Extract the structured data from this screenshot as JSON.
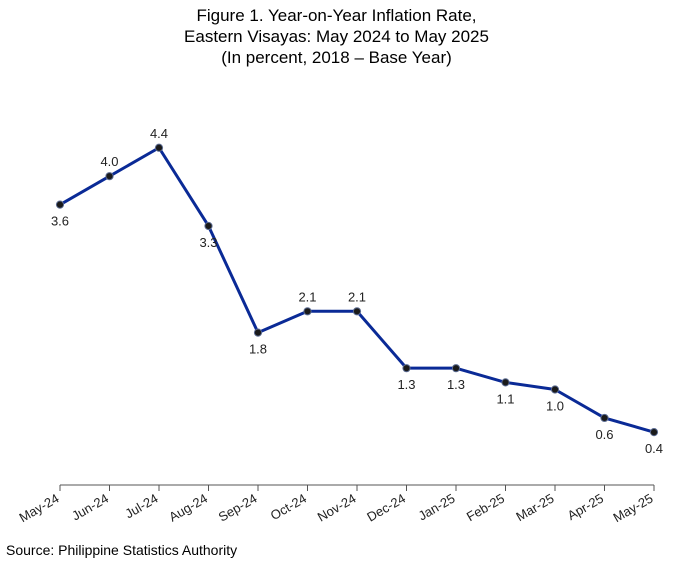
{
  "chart_data": {
    "type": "line",
    "title": [
      "Figure 1. Year-on-Year Inflation Rate,",
      "Eastern Visayas: May 2024 to May 2025",
      "(In percent, 2018 – Base Year)"
    ],
    "xlabel": "",
    "ylabel": "",
    "categories": [
      "May-24",
      "Jun-24",
      "Jul-24",
      "Aug-24",
      "Sep-24",
      "Oct-24",
      "Nov-24",
      "Dec-24",
      "Jan-25",
      "Feb-25",
      "Mar-25",
      "Apr-25",
      "May-25"
    ],
    "series": [
      {
        "values": [
          3.6,
          4.0,
          4.4,
          3.3,
          1.8,
          2.1,
          2.1,
          1.3,
          1.3,
          1.1,
          1.0,
          0.6,
          0.4
        ],
        "labels": [
          "3.6",
          "4.0",
          "4.4",
          "3.3",
          "1.8",
          "2.1",
          "2.1",
          "1.3",
          "1.3",
          "1.1",
          "1.0",
          "0.6",
          "0.4"
        ],
        "label_position": [
          "below",
          "above",
          "above",
          "below",
          "below",
          "above",
          "above",
          "below",
          "below",
          "below",
          "below",
          "below",
          "below"
        ],
        "color": "#0a2a96"
      }
    ],
    "grid": false,
    "legend": "none",
    "source": "Source: Philippine Statistics Authority"
  }
}
